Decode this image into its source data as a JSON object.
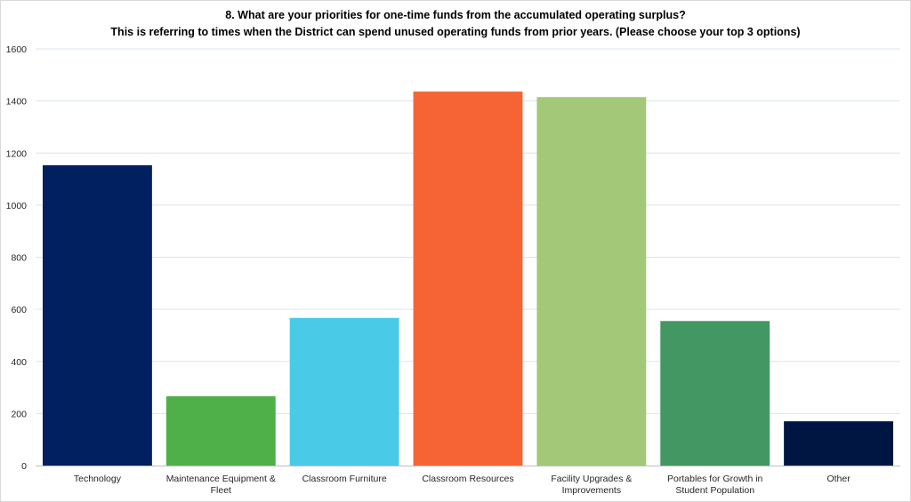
{
  "chart_data": {
    "type": "bar",
    "title": "8.  What are your priorities for one-time funds from the accumulated operating surplus?",
    "subtitle": "This is referring to times when the District can spend unused operating funds from prior years. (Please choose your top 3 options)",
    "xlabel": "",
    "ylabel": "",
    "ylim": [
      0,
      1600
    ],
    "yticks": [
      "0",
      "200",
      "400",
      "600",
      "800",
      "1000",
      "1200",
      "1400",
      "1600"
    ],
    "grid": true,
    "legend": "none",
    "categories": [
      [
        "Technology"
      ],
      [
        "Maintenance Equipment &",
        "Fleet"
      ],
      [
        "Classroom Furniture"
      ],
      [
        "Classroom Resources"
      ],
      [
        "Facility Upgrades &",
        "Improvements"
      ],
      [
        "Portables for Growth in",
        "Student Population"
      ],
      [
        "Other"
      ]
    ],
    "values": [
      1153,
      266,
      567,
      1436,
      1415,
      555,
      170
    ],
    "colors": [
      "#002060",
      "#4fb04a",
      "#49cbe8",
      "#f66435",
      "#a3c978",
      "#439762",
      "#001642"
    ],
    "grid_color": "#d9e4ef",
    "axis_color": "#bfbfbf"
  }
}
